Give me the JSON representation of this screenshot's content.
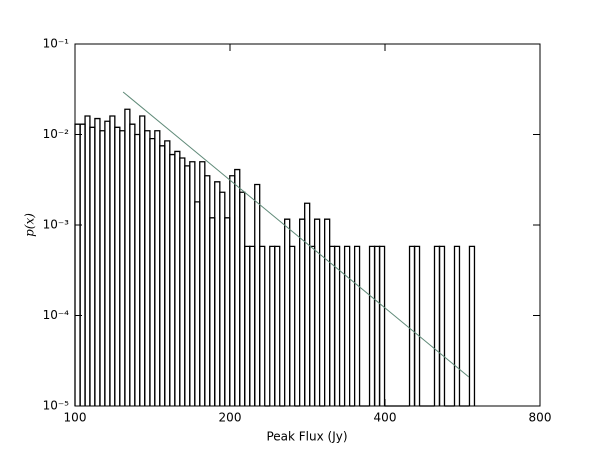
{
  "chart_data": {
    "type": "step-histogram",
    "xlabel": "Peak Flux (Jy)",
    "ylabel": "p(x)",
    "xscale": "log",
    "yscale": "log",
    "xlim": [
      100,
      800
    ],
    "ylim": [
      1e-05,
      0.1
    ],
    "xticks": [
      100,
      200,
      400,
      800
    ],
    "yticks": [
      {
        "value": 1e-05,
        "label": "10⁻⁵"
      },
      {
        "value": 0.0001,
        "label": "10⁻⁴"
      },
      {
        "value": 0.001,
        "label": "10⁻³"
      },
      {
        "value": 0.01,
        "label": "10⁻²"
      },
      {
        "value": 0.1,
        "label": "10⁻¹"
      }
    ],
    "color": "#000000",
    "bins": [
      100,
      102.3,
      104.6,
      106.9,
      109.3,
      111.8,
      114.3,
      116.9,
      119.5,
      122.2,
      125.0,
      127.8,
      130.7,
      133.6,
      136.6,
      139.8,
      142.9,
      146.1,
      149.4,
      152.8,
      156.3,
      159.8,
      163.4,
      167.1,
      170.9,
      174.7,
      178.7,
      182.7,
      186.8,
      191.1,
      195.4,
      199.8,
      204.3,
      208.9,
      213.6,
      218.5,
      223.4,
      228.4,
      233.6,
      238.9,
      244.3,
      249.8,
      255.4,
      261.2,
      267.1,
      273.1,
      279.3,
      285.6,
      292.0,
      298.6,
      305.4,
      312.3,
      319.3,
      326.5,
      333.9,
      341.5,
      349.2,
      357.0,
      365.1,
      373.3,
      381.8,
      390.4,
      399.2,
      408.2,
      417.4,
      426.9,
      436.5,
      446.4,
      456.5,
      466.8,
      477.3,
      488.1,
      499.1,
      510.4,
      521.9,
      533.7,
      545.8,
      558.1,
      570.7,
      583.6,
      596.8
    ],
    "values": [
      0.013,
      0.013,
      0.016,
      0.012,
      0.015,
      0.011,
      0.014,
      0.016,
      0.012,
      0.011,
      0.019,
      0.013,
      0.01,
      0.016,
      0.011,
      0.009,
      0.011,
      0.0075,
      0.0085,
      0.006,
      0.0065,
      0.0055,
      0.0045,
      0.005,
      0.0018,
      0.005,
      0.0035,
      0.0012,
      0.003,
      0.0023,
      0.0012,
      0.0035,
      0.0041,
      0.0023,
      0.00058,
      0.00058,
      0.0028,
      0.00058,
      0,
      0.00058,
      0.00058,
      0,
      0.00116,
      0.00058,
      0,
      0.00116,
      0.00174,
      0.00058,
      0.00116,
      0,
      0.00116,
      0.00058,
      0.00058,
      0,
      0.00058,
      0,
      0.00058,
      0,
      0,
      0.00058,
      0.00058,
      0.00058,
      0,
      0,
      0,
      0,
      0,
      0.00058,
      0.00058,
      0,
      0,
      0,
      0.00058,
      0.00058,
      0,
      0,
      0.00058,
      0,
      0,
      0.00058
    ],
    "fit": {
      "x": [
        124,
        582
      ],
      "values": [
        0.0295,
        2.09e-05
      ],
      "color": "#5f8a78"
    }
  }
}
